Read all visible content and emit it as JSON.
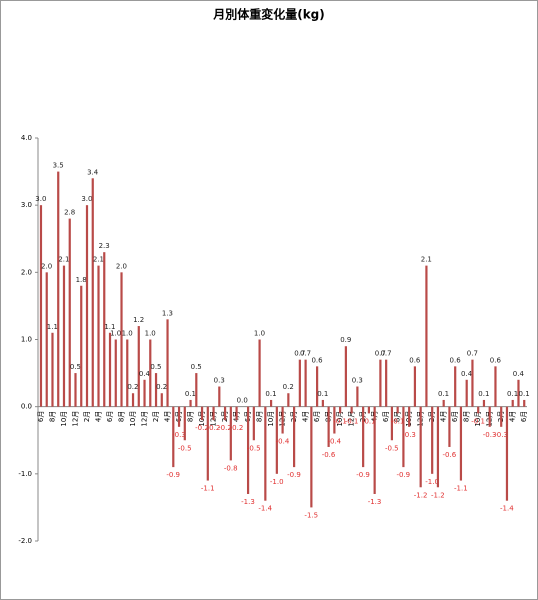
{
  "chart_data": {
    "type": "bar",
    "title": "月別体重変化量(kg)",
    "categories": [
      "6月",
      null,
      "8月",
      null,
      "10月",
      null,
      "12月",
      null,
      "2月",
      null,
      "4月",
      null,
      "6月",
      null,
      "8月",
      null,
      "10月",
      null,
      "12月",
      null,
      "2月",
      null,
      "4月",
      null,
      "6月",
      null,
      "8月",
      null,
      "10月",
      null,
      "12月",
      null,
      "2月",
      null,
      "4月",
      null,
      "6月",
      null,
      "8月",
      null,
      "10月",
      null,
      "12月",
      null,
      "2月",
      null,
      "4月",
      null,
      "6月",
      null,
      "8月",
      null,
      "10月",
      null,
      "12月",
      null,
      "2月",
      null,
      "4月",
      null,
      "6月",
      null,
      "8月",
      null,
      "10月",
      null,
      "12月",
      null,
      "2月",
      null,
      "4月",
      null,
      "6月",
      null,
      "8月",
      null,
      "10月",
      null,
      "12月",
      null,
      "2月",
      null,
      "4月",
      null,
      "6月"
    ],
    "values": [
      3.0,
      2.0,
      1.1,
      3.5,
      2.1,
      2.8,
      0.5,
      1.8,
      3.0,
      3.4,
      2.1,
      2.3,
      1.1,
      1.0,
      2.0,
      1.0,
      0.2,
      1.2,
      0.4,
      1.0,
      0.5,
      0.2,
      1.3,
      -0.9,
      -0.3,
      -0.5,
      0.1,
      0.5,
      -0.2,
      -1.1,
      -0.2,
      0.3,
      -0.2,
      -0.8,
      -0.2,
      0.0,
      -1.3,
      -0.5,
      1.0,
      -1.4,
      0.1,
      -1.0,
      -0.4,
      0.2,
      -0.9,
      0.7,
      0.7,
      -1.5,
      0.6,
      0.1,
      -0.6,
      -0.4,
      -0.1,
      0.9,
      -0.1,
      0.3,
      -0.9,
      -0.1,
      -1.3,
      0.7,
      0.7,
      -0.5,
      -0.1,
      -0.9,
      -0.3,
      0.6,
      -1.2,
      2.1,
      -1.0,
      -1.2,
      0.1,
      -0.6,
      0.6,
      -1.1,
      0.4,
      0.7,
      -0.1,
      0.1,
      -0.3,
      0.6,
      -0.3,
      -1.4,
      0.1,
      0.4,
      0.1
    ],
    "value_labels": [
      "3.0",
      "2.0",
      "1.1",
      "3.5",
      "2.1",
      "2.8",
      "0.5",
      "1.8",
      "3.0",
      "3.4",
      "2.1",
      "2.3",
      "1.1",
      "1.0",
      "2.0",
      "1.0",
      "0.2",
      "1.2",
      "0.4",
      "1.0",
      "0.5",
      "0.2",
      "1.3",
      "-0.9",
      "-0.3",
      "-0.5",
      "0.1",
      "0.5",
      "-0.2",
      "-1.1",
      "-0.2",
      "0.3",
      "-0.2",
      "-0.8",
      "-0.2",
      "0.0",
      "-1.3",
      "-0.5",
      "1.0",
      "-1.4",
      "0.1",
      "-1.0",
      "-0.4",
      "0.2",
      "-0.9",
      "0.7",
      "0.7",
      "-1.5",
      "0.6",
      "0.1",
      "-0.6",
      "-0.4",
      "-0.1",
      "0.9",
      "-0.1",
      "0.3",
      "-0.9",
      "-0.1",
      "-1.3",
      "0.7",
      "0.7",
      "-0.5",
      "-0.1",
      "-0.9",
      "-0.3",
      "0.6",
      "-1.2",
      "2.1",
      "-1.0",
      "-1.2",
      "0.1",
      "-0.6",
      "0.6",
      "-1.1",
      "0.4",
      "0.7",
      "-0.1",
      "0.1",
      "-0.3",
      "0.6",
      "-0.3",
      "-1.4",
      "0.1",
      "0.4",
      "0.1"
    ],
    "color": "#b94a48",
    "negative_label_color": "#e03030",
    "ylim": [
      -2,
      4
    ],
    "yticks": [
      {
        "value": -2,
        "label": "-2.0"
      },
      {
        "value": -1,
        "label": "-1.0"
      },
      {
        "value": 0,
        "label": "0.0"
      },
      {
        "value": 1,
        "label": "1.0"
      },
      {
        "value": 2,
        "label": "2.0"
      },
      {
        "value": 3,
        "label": "3.0"
      },
      {
        "value": 4,
        "label": "4.0"
      }
    ],
    "grid": false
  }
}
